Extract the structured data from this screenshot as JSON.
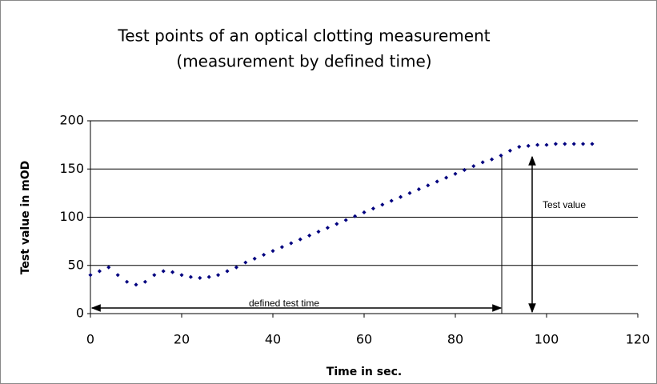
{
  "chart_data": {
    "type": "scatter",
    "title": "Test points of an optical clotting measurement",
    "subtitle": "(measurement by defined time)",
    "x_label": "Time in sec.",
    "y_label": "Test value in mOD",
    "annotations": [
      "defined test time",
      "Test value"
    ],
    "color": "#00007f",
    "x": [
      0,
      2,
      4,
      6,
      8,
      10,
      12,
      14,
      16,
      18,
      20,
      22,
      24,
      26,
      28,
      30,
      32,
      34,
      36,
      38,
      40,
      42,
      44,
      46,
      48,
      50,
      52,
      54,
      56,
      58,
      60,
      62,
      64,
      66,
      68,
      70,
      72,
      74,
      76,
      78,
      80,
      82,
      84,
      86,
      88,
      90,
      92,
      94,
      96,
      98,
      100,
      102,
      104,
      106,
      108,
      110
    ],
    "values": [
      40,
      44,
      48,
      40,
      33,
      30,
      33,
      40,
      44,
      43,
      40,
      38,
      37,
      38,
      40,
      44,
      48,
      53,
      57,
      61,
      65,
      69,
      73,
      77,
      81,
      85,
      89,
      93,
      97,
      101,
      105,
      109,
      113,
      117,
      121,
      125,
      129,
      133,
      137,
      141,
      145,
      149,
      153,
      157,
      160,
      164,
      169,
      173,
      174,
      175,
      175,
      176,
      176,
      176,
      176,
      176
    ],
    "xlim": [
      0,
      120
    ],
    "xticks": [
      0,
      20,
      40,
      60,
      80,
      100,
      120
    ],
    "ylim": [
      0,
      200
    ],
    "yticks": [
      0,
      50,
      100,
      150,
      200
    ],
    "grid": true
  }
}
